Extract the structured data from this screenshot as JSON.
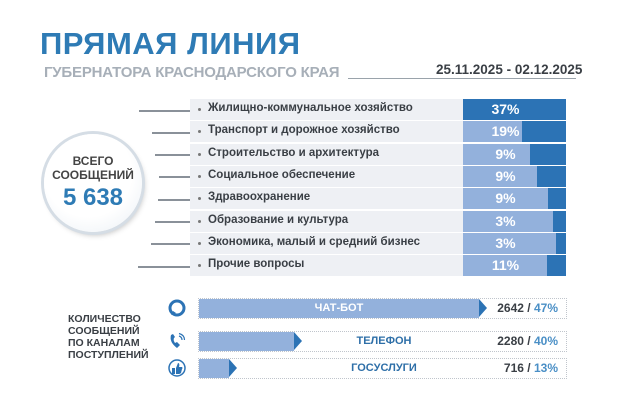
{
  "header": {
    "title": "ПРЯМАЯ ЛИНИЯ",
    "subtitle": "ГУБЕРНАТОРА КРАСНОДАРСКОГО КРАЯ",
    "date_range": "25.11.2025 - 02.12.2025"
  },
  "total": {
    "label_line1": "ВСЕГО",
    "label_line2": "СООБЩЕНИЙ",
    "value": "5 638"
  },
  "colors": {
    "accent": "#2e7bb5",
    "bar_dark": "#2c73b5",
    "bar_light": "#93b1dc",
    "row_bg": "#eef0f4"
  },
  "chart_data": [
    {
      "type": "bar",
      "categories": [
        "Жилищно-коммунальное хозяйство",
        "Транспорт и дорожное хозяйство",
        "Строительство и архитектура",
        "Социальное обеспечение",
        "Здравоохранение",
        "Образование и культура",
        "Экономика, малый и средний бизнес",
        "Прочие вопросы"
      ],
      "values": [
        37,
        19,
        9,
        9,
        9,
        3,
        3,
        11
      ],
      "labels": [
        "37%",
        "19%",
        "9%",
        "9%",
        "9%",
        "3%",
        "3%",
        "11%"
      ]
    },
    {
      "type": "bar",
      "title_lines": [
        "КОЛИЧЕСТВО",
        "СООБЩЕНИЙ",
        "ПО КАНАЛАМ",
        "ПОСТУПЛЕНИЙ"
      ],
      "categories": [
        "ЧАТ-БОТ",
        "ТЕЛЕФОН",
        "ГОСУСЛУГИ"
      ],
      "counts": [
        2642,
        2280,
        716
      ],
      "percent": [
        47,
        40,
        13
      ],
      "count_labels": [
        "2642",
        "2280",
        "716"
      ],
      "percent_labels": [
        "47%",
        "40%",
        "13%"
      ],
      "icons": [
        "chat-bubble-icon",
        "phone-icon",
        "thumbs-up-icon"
      ]
    }
  ]
}
